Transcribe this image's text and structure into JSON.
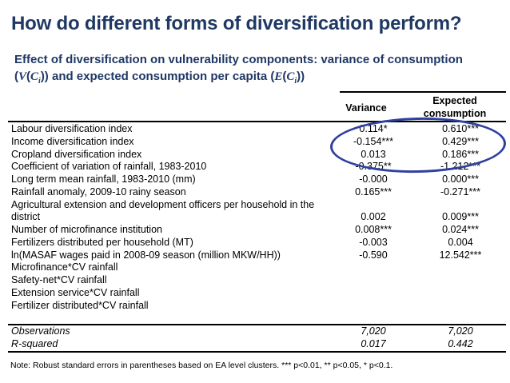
{
  "slide": {
    "title": "How do different forms of diversification perform?",
    "subtitle": {
      "line1": "Effect of diversification on vulnerability components: variance of consumption",
      "math": {
        "p1": "(",
        "v": "V",
        "p2": "(",
        "c1": "C",
        "s1": "i",
        "p3": ")) and expected consumption per capita (",
        "e": "E",
        "p4": "(",
        "c2": "C",
        "s2": "i",
        "p5": "))"
      }
    }
  },
  "table": {
    "headers": {
      "variance": "Variance",
      "expected_line1": "Expected",
      "expected_line2": "consumption"
    },
    "rows": [
      {
        "label": "Labour diversification index",
        "variance": "0.114*",
        "expected": "0.610***"
      },
      {
        "label": "Income diversification index",
        "variance": "-0.154***",
        "expected": "0.429***"
      },
      {
        "label": "Cropland diversification index",
        "variance": "0.013",
        "expected": "0.186***"
      },
      {
        "label": "Coefficient of variation of rainfall, 1983-2010",
        "variance": "-0.375**",
        "expected": "-1.212***"
      },
      {
        "label": "Long term mean rainfall, 1983-2010 (mm)",
        "variance": "-0.000",
        "expected": "0.000***"
      },
      {
        "label": "Rainfall anomaly, 2009-10 rainy season",
        "variance": "0.165***",
        "expected": "-0.271***"
      },
      {
        "label": "Agricultural extension and development officers per household in the district",
        "variance": "0.002",
        "expected": "0.009***"
      },
      {
        "label": "Number of microfinance institution",
        "variance": "0.008***",
        "expected": "0.024***"
      },
      {
        "label": "Fertilizers distributed per household (MT)",
        "variance": "-0.003",
        "expected": "0.004"
      },
      {
        "label": "ln(MASAF wages paid in 2008-09 season (million MKW/HH))",
        "variance": "-0.590",
        "expected": "12.542***"
      },
      {
        "label": "Microfinance*CV rainfall",
        "variance": "",
        "expected": ""
      },
      {
        "label": "Safety-net*CV rainfall",
        "variance": "",
        "expected": ""
      },
      {
        "label": "Extension service*CV rainfall",
        "variance": "",
        "expected": ""
      },
      {
        "label": "Fertilizer distributed*CV rainfall",
        "variance": "",
        "expected": ""
      }
    ],
    "footer_rows": [
      {
        "label": "Observations",
        "variance": "7,020",
        "expected": "7,020"
      },
      {
        "label": "R-squared",
        "variance": "0.017",
        "expected": "0.442"
      }
    ],
    "note": "Note: Robust standard errors in parentheses based on EA level clusters. *** p<0.01, ** p<0.05, * p<0.1."
  },
  "annotation": {
    "circled_region": "top three coefficient rows (diversification indices) for both columns",
    "ellipse_color": "#2f41a0"
  },
  "colors": {
    "heading": "#1f3864",
    "body_text": "#000000",
    "background": "#ffffff"
  }
}
